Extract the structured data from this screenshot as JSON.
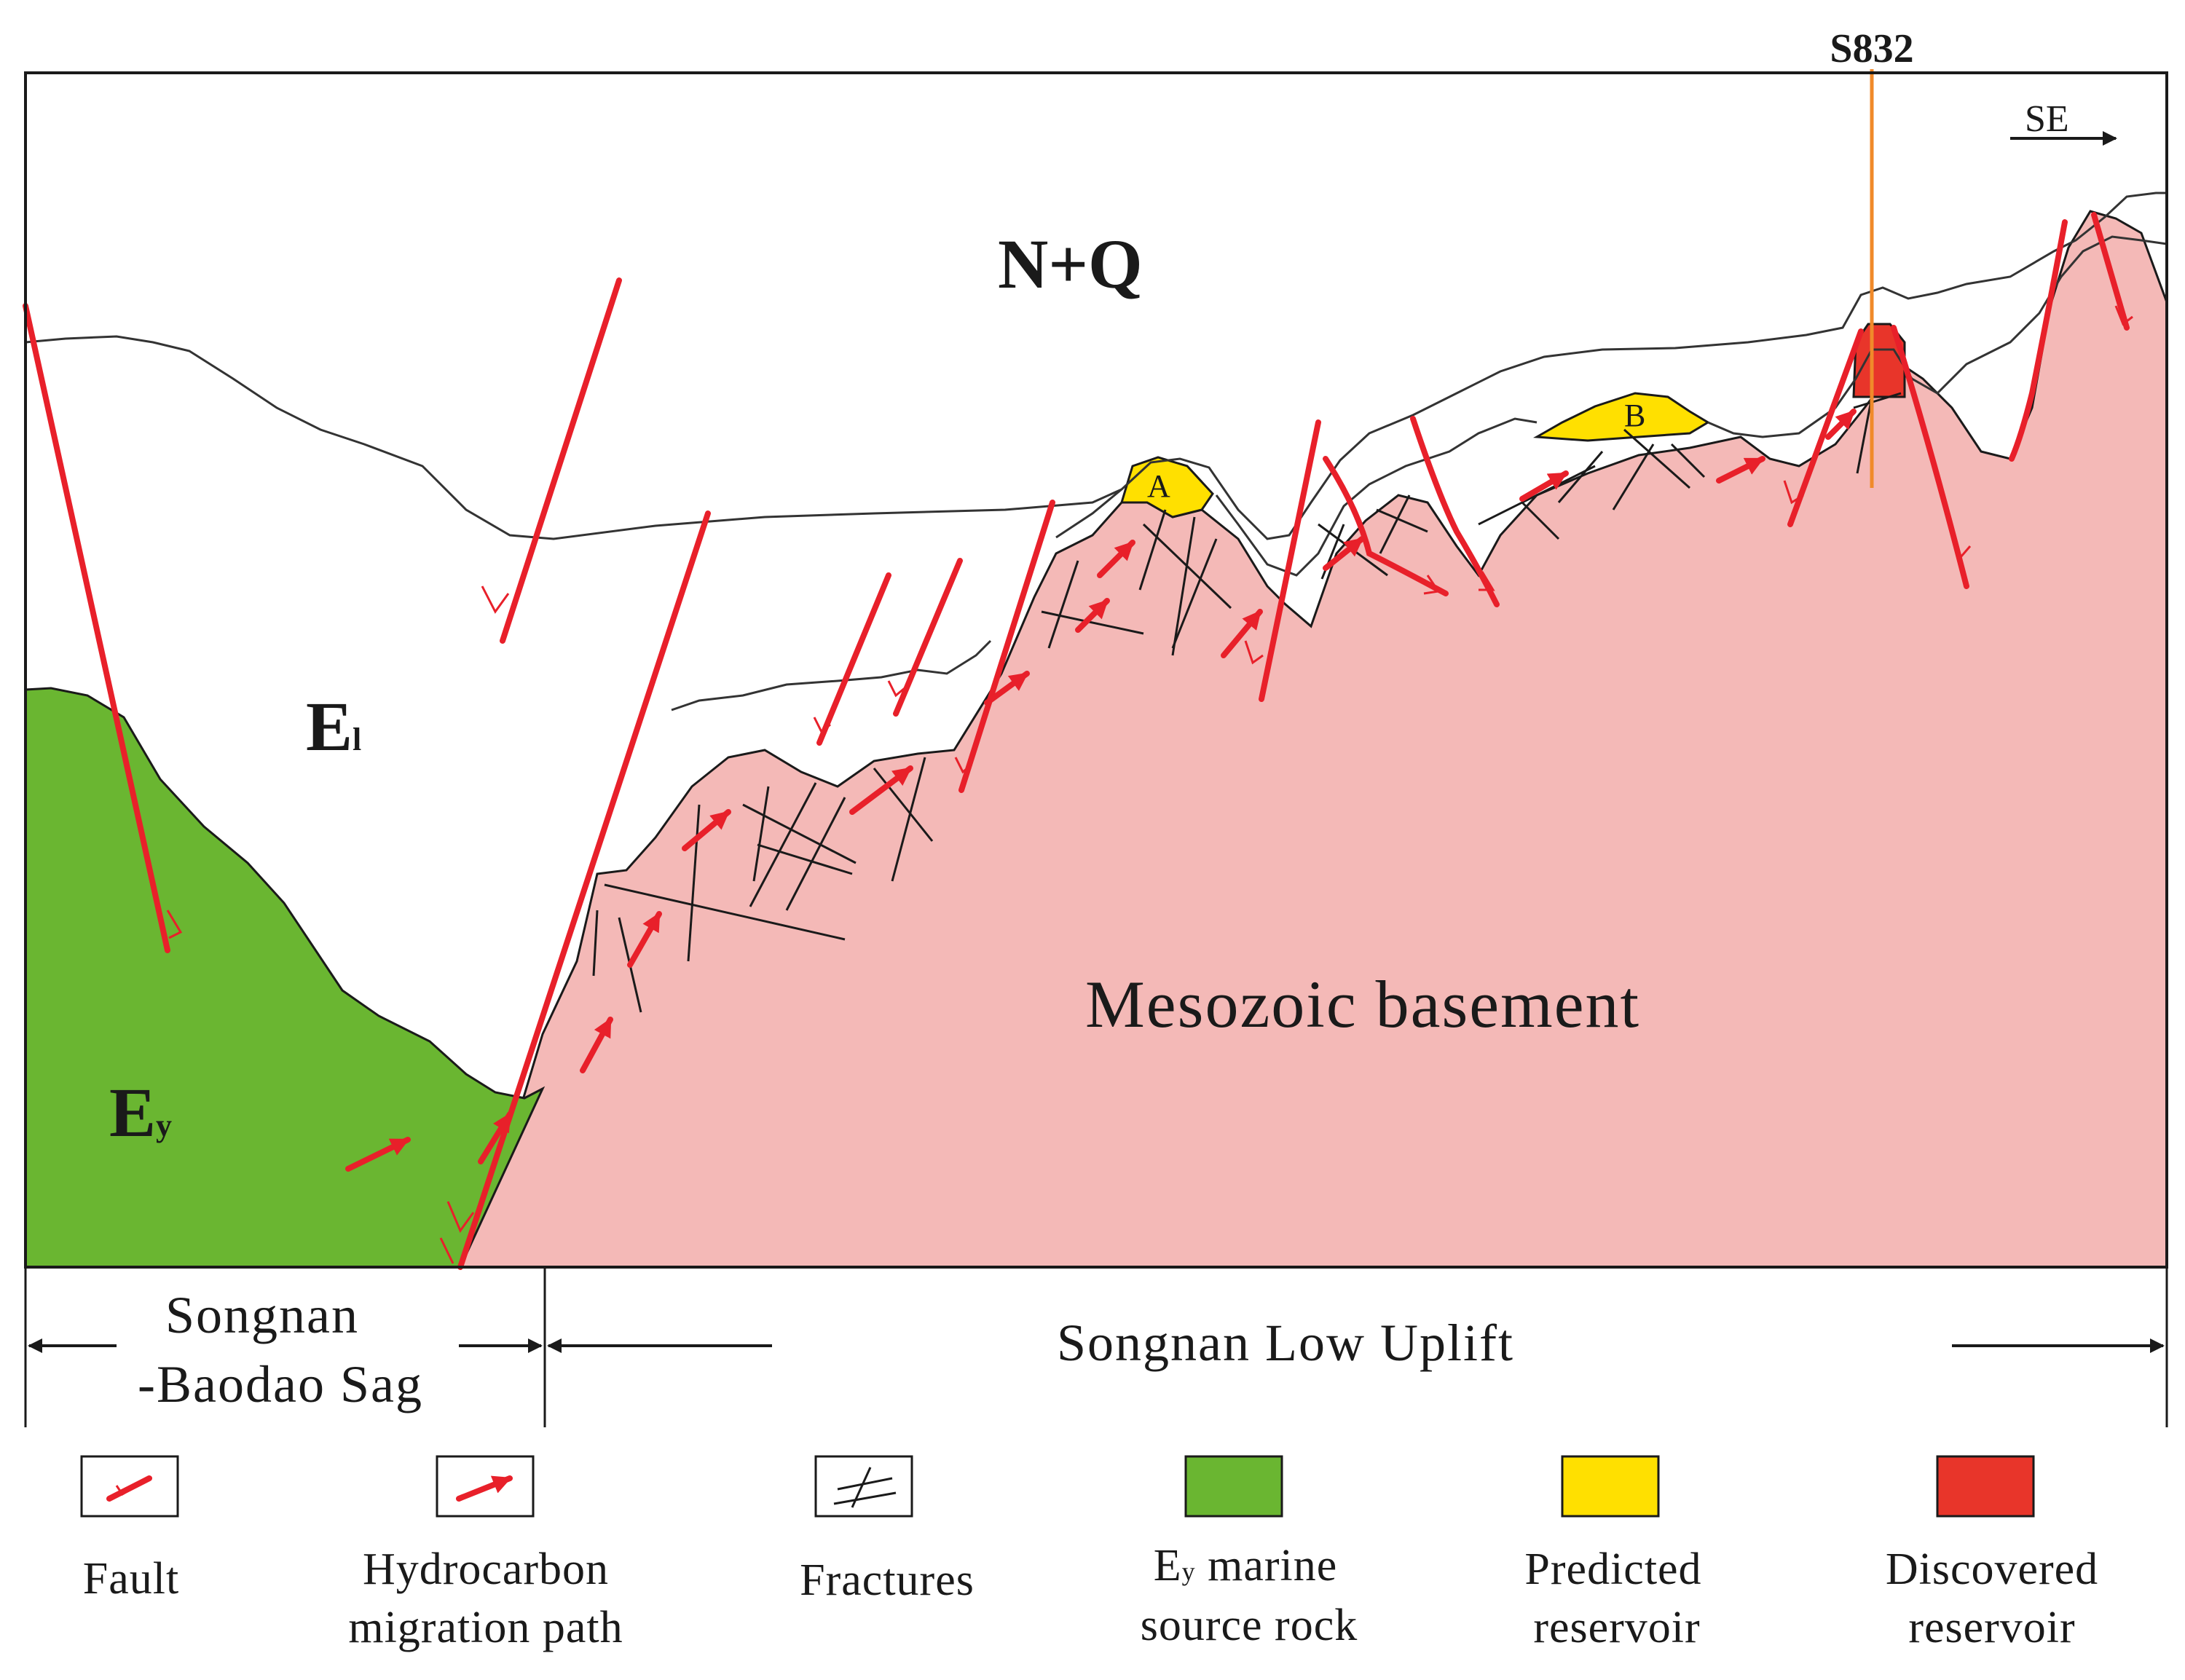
{
  "colors": {
    "basement": "#f4b9b7",
    "source_rock": "#6ab631",
    "predicted_reservoir": "#ffe000",
    "discovered_reservoir": "#e8352a",
    "fault": "#e8202a",
    "well": "#f08a2a"
  },
  "section": {
    "well_label": "S832",
    "direction_label": "SE",
    "unit_nq": "N+Q",
    "unit_el_main": "E",
    "unit_el_sub": "l",
    "unit_ey_main": "E",
    "unit_ey_sub": "y",
    "basement_label": "Mesozoic basement",
    "reservoir_a": "A",
    "reservoir_b": "B"
  },
  "zones": {
    "sag_line1": "Songnan",
    "sag_line2": "-Baodao Sag",
    "uplift": "Songnan Low Uplift"
  },
  "legend": {
    "fault": "Fault",
    "migration_line1": "Hydrocarbon",
    "migration_line2": "migration path",
    "fractures": "Fractures",
    "source_main": "E",
    "source_sub": "y",
    "source_rest": " marine",
    "source_line2": "source rock",
    "predicted_line1": "Predicted",
    "predicted_line2": "reservoir",
    "discovered_line1": "Discovered",
    "discovered_line2": "reservoir"
  }
}
